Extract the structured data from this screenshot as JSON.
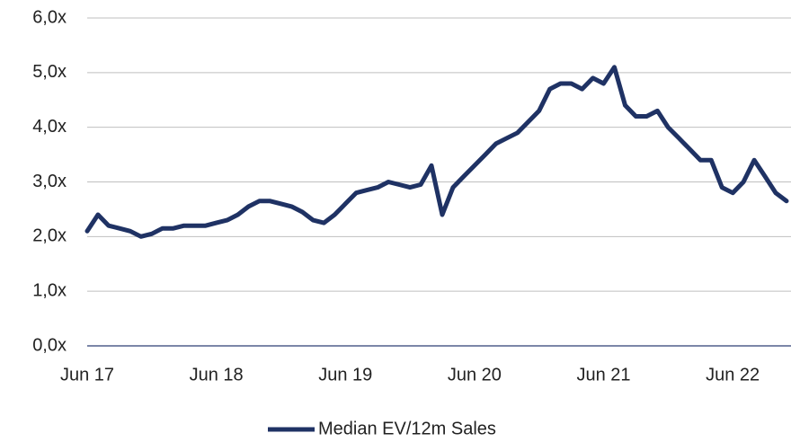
{
  "chart_data": {
    "type": "line",
    "categories": [
      "Jun 17",
      null,
      null,
      null,
      null,
      null,
      null,
      null,
      null,
      null,
      null,
      null,
      "Jun 18",
      null,
      null,
      null,
      null,
      null,
      null,
      null,
      null,
      null,
      null,
      null,
      "Jun 19",
      null,
      null,
      null,
      null,
      null,
      null,
      null,
      null,
      null,
      null,
      null,
      "Jun 20",
      null,
      null,
      null,
      null,
      null,
      null,
      null,
      null,
      null,
      null,
      null,
      "Jun 21",
      null,
      null,
      null,
      null,
      null,
      null,
      null,
      null,
      null,
      null,
      null,
      "Jun 22",
      null,
      null,
      null,
      null,
      null
    ],
    "series": [
      {
        "name": "Median EV/12m Sales",
        "color": "#1f3264",
        "values": [
          2.1,
          2.4,
          2.2,
          2.15,
          2.1,
          2.0,
          2.05,
          2.15,
          2.15,
          2.2,
          2.2,
          2.2,
          2.25,
          2.3,
          2.4,
          2.55,
          2.65,
          2.65,
          2.6,
          2.55,
          2.45,
          2.3,
          2.25,
          2.4,
          2.6,
          2.8,
          2.85,
          2.9,
          3.0,
          2.95,
          2.9,
          2.95,
          3.3,
          2.4,
          2.9,
          3.1,
          3.3,
          3.5,
          3.7,
          3.8,
          3.9,
          4.1,
          4.3,
          4.7,
          4.8,
          4.8,
          4.7,
          4.9,
          4.8,
          5.1,
          4.4,
          4.2,
          4.2,
          4.3,
          4.0,
          3.8,
          3.6,
          3.4,
          3.4,
          2.9,
          2.8,
          3.0,
          3.4,
          3.1,
          2.8,
          2.65
        ]
      }
    ],
    "ylim": [
      0,
      6
    ],
    "yticks": [
      {
        "value": 0,
        "label": "0,0x"
      },
      {
        "value": 1,
        "label": "1,0x"
      },
      {
        "value": 2,
        "label": "2,0x"
      },
      {
        "value": 3,
        "label": "3,0x"
      },
      {
        "value": 4,
        "label": "4,0x"
      },
      {
        "value": 5,
        "label": "5,0x"
      },
      {
        "value": 6,
        "label": "6,0x"
      }
    ],
    "grid": true,
    "legend": "bottom"
  }
}
